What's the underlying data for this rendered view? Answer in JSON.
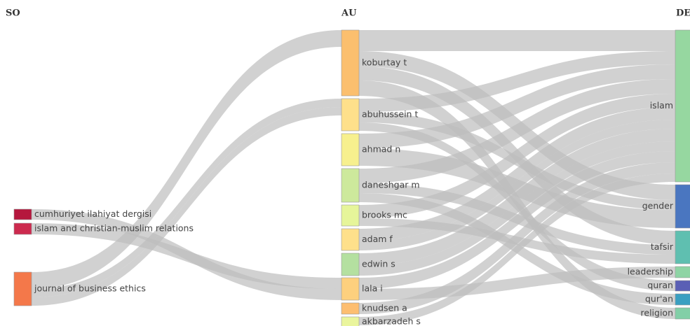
{
  "columns": [
    {
      "title": "SO",
      "nodes": [
        "cumhuriyet ilahiyat dergisi",
        "islam and christian-muslim relations",
        "journal of business ethics"
      ]
    },
    {
      "title": "AU",
      "nodes": [
        "koburtay t",
        "abuhussein t",
        "ahmad n",
        "daneshgar m",
        "brooks mc",
        "adam f",
        "edwin s",
        "lala i",
        "knudsen a",
        "akbarzadeh s"
      ]
    },
    {
      "title": "DE",
      "nodes": [
        "islam",
        "gender",
        "tafsir",
        "leadership",
        "quran",
        "qur'an",
        "religion"
      ]
    }
  ]
}
